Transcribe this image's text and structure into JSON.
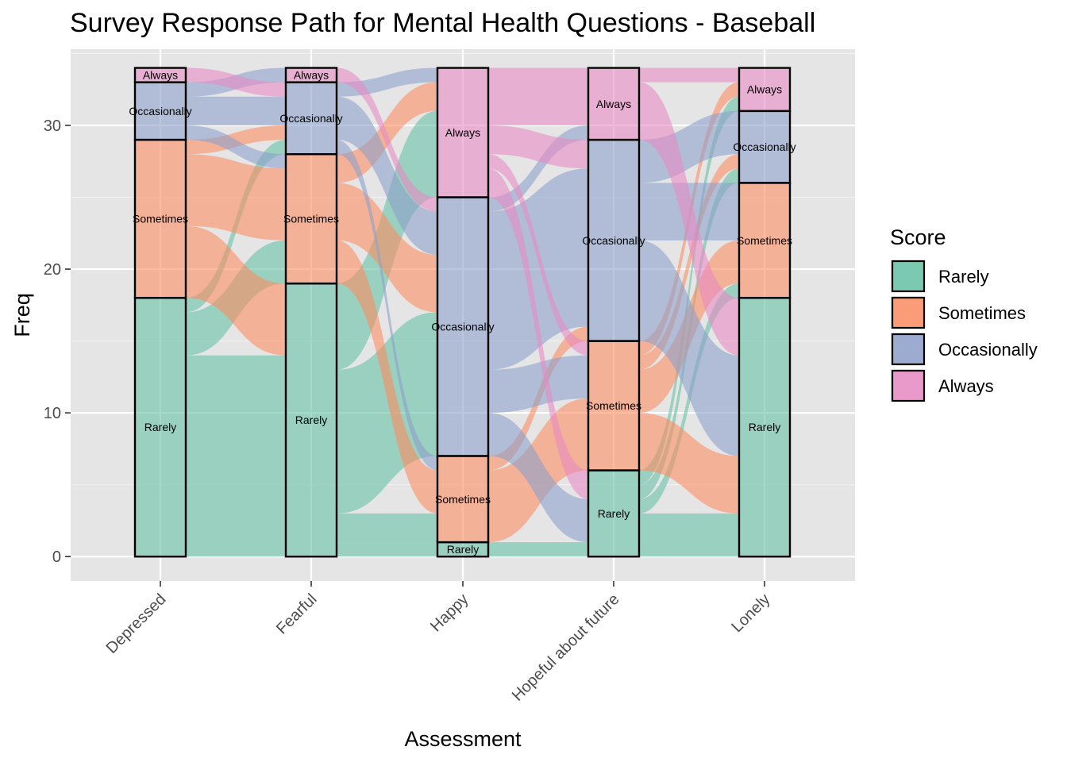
{
  "chart_data": {
    "type": "alluvial",
    "title": "Survey Response Path for Mental Health Questions - Baseball",
    "xlabel": "Assessment",
    "ylabel": "Freq",
    "ylim": [
      -1.7,
      35.3
    ],
    "yticks": [
      0,
      10,
      20,
      30
    ],
    "grid": true,
    "legend_position": "right",
    "categories": [
      "Depressed",
      "Fearful",
      "Happy",
      "Hopeful about future",
      "Lonely"
    ],
    "legend": {
      "title": "Score",
      "entries": [
        {
          "label": "Rarely",
          "color": "#66c2a5"
        },
        {
          "label": "Sometimes",
          "color": "#fc8d62"
        },
        {
          "label": "Occasionally",
          "color": "#8da0cb"
        },
        {
          "label": "Always",
          "color": "#e78ac3"
        }
      ]
    },
    "strata_order": [
      "Rarely",
      "Sometimes",
      "Occasionally",
      "Always"
    ],
    "strata": [
      {
        "axis": "Depressed",
        "counts": {
          "Rarely": 18,
          "Sometimes": 11,
          "Occasionally": 4,
          "Always": 1
        }
      },
      {
        "axis": "Fearful",
        "counts": {
          "Rarely": 19,
          "Sometimes": 9,
          "Occasionally": 5,
          "Always": 1
        }
      },
      {
        "axis": "Happy",
        "counts": {
          "Rarely": 1,
          "Sometimes": 6,
          "Occasionally": 18,
          "Always": 9
        }
      },
      {
        "axis": "Hopeful about future",
        "counts": {
          "Rarely": 6,
          "Sometimes": 9,
          "Occasionally": 14,
          "Always": 5
        }
      },
      {
        "axis": "Lonely",
        "counts": {
          "Rarely": 18,
          "Sometimes": 8,
          "Occasionally": 5,
          "Always": 3
        }
      }
    ],
    "stratum_labels": {
      "Rarely": "Rarely",
      "Sometimes": "Sometimes",
      "Occasionally": "Occasionally",
      "Always": "Always"
    },
    "flows": [
      {
        "from": "Depressed",
        "to": "Fearful",
        "links": [
          {
            "source": "Rarely",
            "target": "Rarely",
            "value": 14
          },
          {
            "source": "Rarely",
            "target": "Sometimes",
            "value": 3
          },
          {
            "source": "Rarely",
            "target": "Occasionally",
            "value": 1
          },
          {
            "source": "Sometimes",
            "target": "Rarely",
            "value": 5
          },
          {
            "source": "Sometimes",
            "target": "Sometimes",
            "value": 5
          },
          {
            "source": "Sometimes",
            "target": "Occasionally",
            "value": 1
          },
          {
            "source": "Occasionally",
            "target": "Sometimes",
            "value": 1
          },
          {
            "source": "Occasionally",
            "target": "Occasionally",
            "value": 2
          },
          {
            "source": "Occasionally",
            "target": "Always",
            "value": 1
          },
          {
            "source": "Always",
            "target": "Occasionally",
            "value": 1
          }
        ]
      },
      {
        "from": "Fearful",
        "to": "Happy",
        "links": [
          {
            "source": "Rarely",
            "target": "Rarely",
            "value": 1
          },
          {
            "source": "Rarely",
            "target": "Sometimes",
            "value": 2
          },
          {
            "source": "Rarely",
            "target": "Occasionally",
            "value": 10
          },
          {
            "source": "Rarely",
            "target": "Always",
            "value": 6
          },
          {
            "source": "Sometimes",
            "target": "Sometimes",
            "value": 3
          },
          {
            "source": "Sometimes",
            "target": "Occasionally",
            "value": 4
          },
          {
            "source": "Sometimes",
            "target": "Always",
            "value": 2
          },
          {
            "source": "Occasionally",
            "target": "Sometimes",
            "value": 1
          },
          {
            "source": "Occasionally",
            "target": "Occasionally",
            "value": 3
          },
          {
            "source": "Occasionally",
            "target": "Always",
            "value": 1
          },
          {
            "source": "Always",
            "target": "Occasionally",
            "value": 1
          }
        ]
      },
      {
        "from": "Happy",
        "to": "Hopeful about future",
        "links": [
          {
            "source": "Rarely",
            "target": "Rarely",
            "value": 1
          },
          {
            "source": "Sometimes",
            "target": "Sometimes",
            "value": 5
          },
          {
            "source": "Sometimes",
            "target": "Occasionally",
            "value": 1
          },
          {
            "source": "Occasionally",
            "target": "Rarely",
            "value": 3
          },
          {
            "source": "Occasionally",
            "target": "Sometimes",
            "value": 3
          },
          {
            "source": "Occasionally",
            "target": "Occasionally",
            "value": 11
          },
          {
            "source": "Occasionally",
            "target": "Always",
            "value": 1
          },
          {
            "source": "Always",
            "target": "Rarely",
            "value": 2
          },
          {
            "source": "Always",
            "target": "Sometimes",
            "value": 1
          },
          {
            "source": "Always",
            "target": "Occasionally",
            "value": 2
          },
          {
            "source": "Always",
            "target": "Always",
            "value": 4
          }
        ]
      },
      {
        "from": "Hopeful about future",
        "to": "Lonely",
        "links": [
          {
            "source": "Rarely",
            "target": "Rarely",
            "value": 3
          },
          {
            "source": "Rarely",
            "target": "Sometimes",
            "value": 1
          },
          {
            "source": "Rarely",
            "target": "Occasionally",
            "value": 1
          },
          {
            "source": "Rarely",
            "target": "Always",
            "value": 1
          },
          {
            "source": "Sometimes",
            "target": "Rarely",
            "value": 4
          },
          {
            "source": "Sometimes",
            "target": "Sometimes",
            "value": 3
          },
          {
            "source": "Sometimes",
            "target": "Occasionally",
            "value": 1
          },
          {
            "source": "Sometimes",
            "target": "Always",
            "value": 1
          },
          {
            "source": "Occasionally",
            "target": "Rarely",
            "value": 7
          },
          {
            "source": "Occasionally",
            "target": "Sometimes",
            "value": 4
          },
          {
            "source": "Occasionally",
            "target": "Occasionally",
            "value": 3
          },
          {
            "source": "Always",
            "target": "Rarely",
            "value": 4
          },
          {
            "source": "Always",
            "target": "Always",
            "value": 1
          }
        ]
      }
    ]
  }
}
